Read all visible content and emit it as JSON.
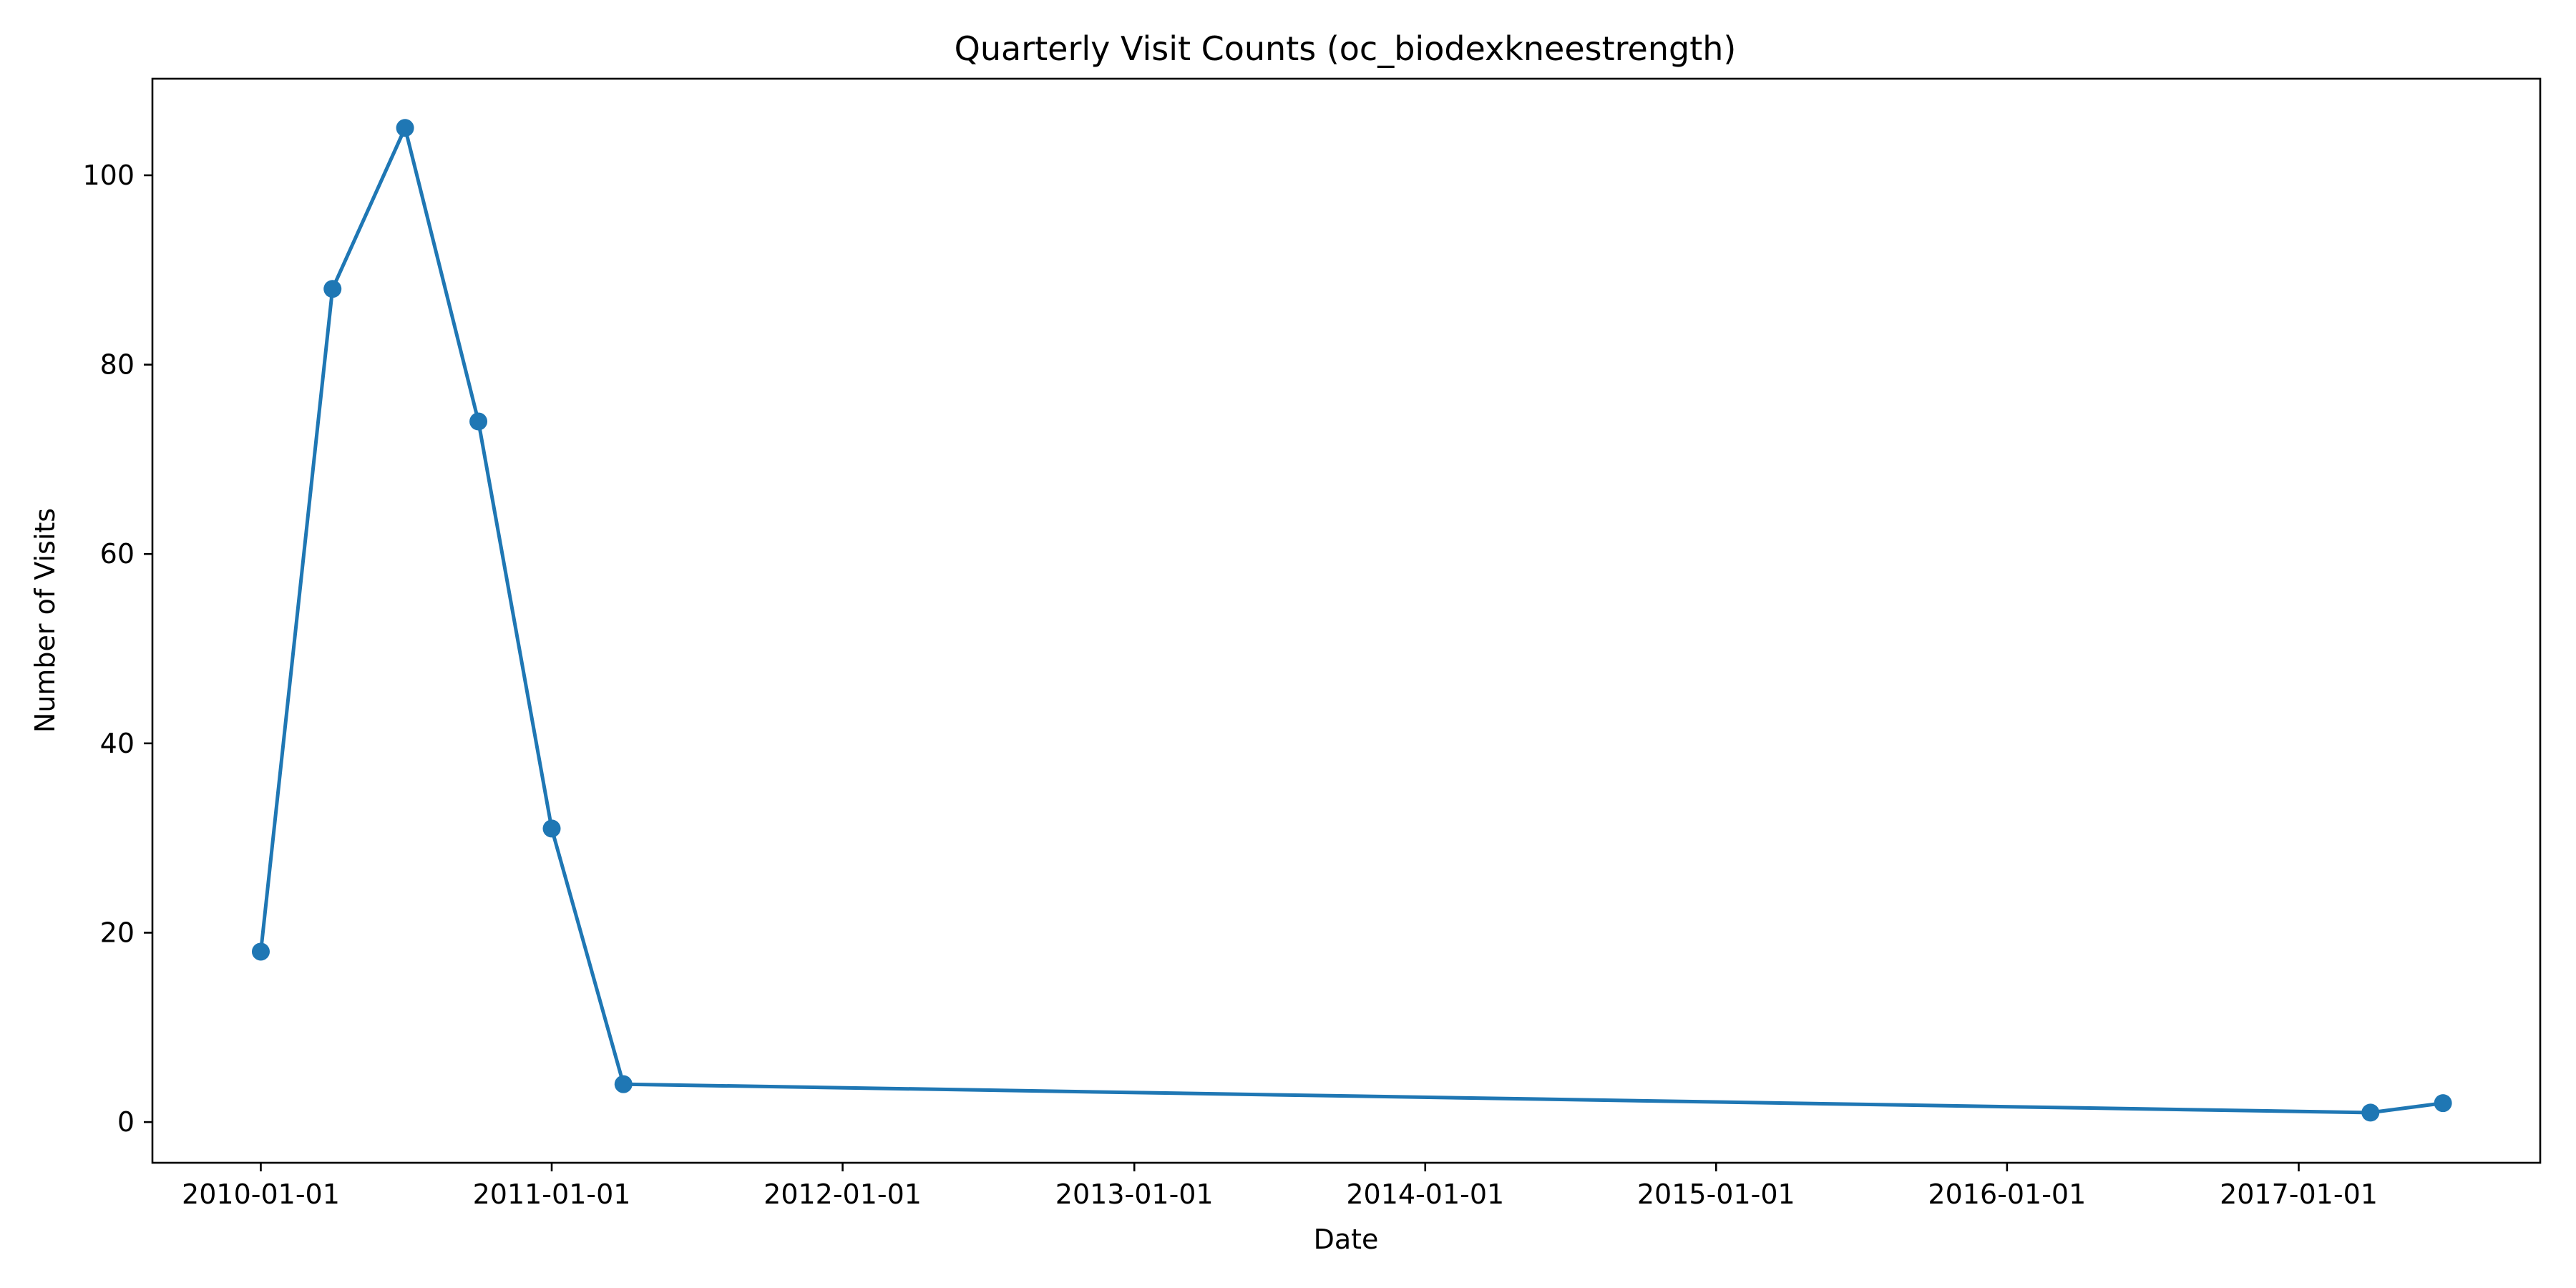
{
  "chart_data": {
    "type": "line",
    "title": "Quarterly Visit Counts (oc_biodexkneestrength)",
    "xlabel": "Date",
    "ylabel": "Number of Visits",
    "x_axis_type": "date",
    "xlim": [
      "2009-08-18",
      "2017-10-31"
    ],
    "ylim": [
      -4.3,
      110.2
    ],
    "x_ticks": [
      "2010-01-01",
      "2011-01-01",
      "2012-01-01",
      "2013-01-01",
      "2014-01-01",
      "2015-01-01",
      "2016-01-01",
      "2017-01-01"
    ],
    "y_ticks": [
      0,
      20,
      40,
      60,
      80,
      100
    ],
    "grid": false,
    "legend": "none",
    "marker": "circle",
    "color": "#1f77b4",
    "series": [
      {
        "x": [
          "2010-01-01",
          "2010-04-01",
          "2010-07-01",
          "2010-10-01",
          "2011-01-01",
          "2011-04-01",
          "2017-04-01",
          "2017-07-01"
        ],
        "values": [
          18,
          88,
          105,
          74,
          31,
          4,
          1,
          2
        ]
      }
    ]
  }
}
